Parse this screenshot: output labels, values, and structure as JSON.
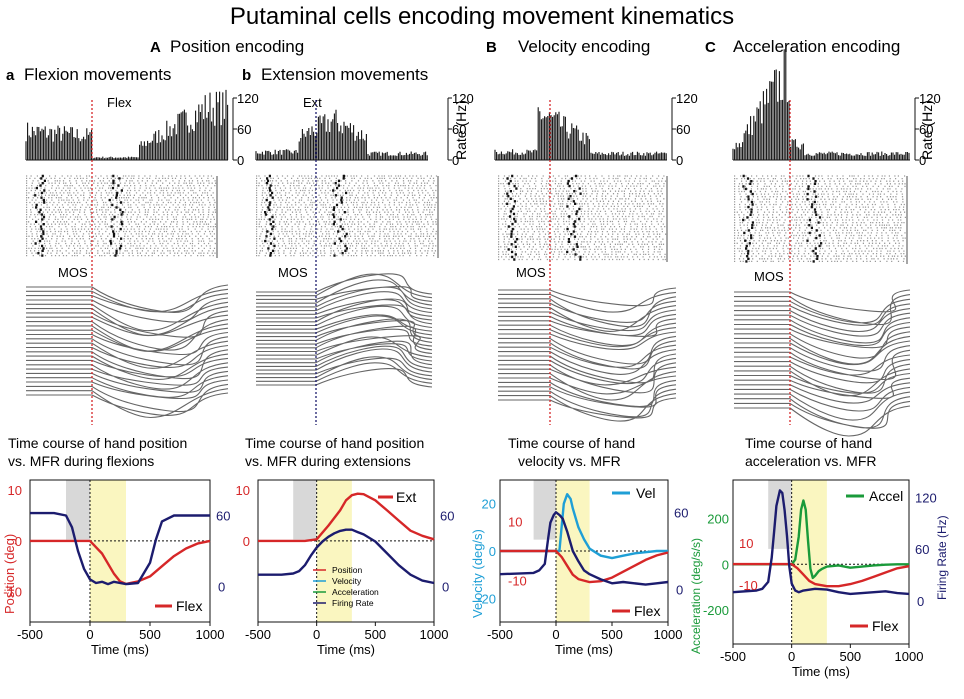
{
  "figure_title": "Putaminal cells encoding movement kinematics",
  "colors": {
    "position": "#d62728",
    "velocity": "#1f9fd6",
    "acceleration": "#1a9a3a",
    "firing_rate": "#1c1c6e",
    "pre_shade": "#d8d8d8",
    "move_shade": "#faf6c0"
  },
  "sections": {
    "A": {
      "letter": "A",
      "title": "Position encoding"
    },
    "B": {
      "letter": "B",
      "title": "Velocity encoding"
    },
    "C": {
      "letter": "C",
      "title": "Acceleration encoding"
    }
  },
  "panels": {
    "a": {
      "letter": "a",
      "title": "Flexion movements",
      "event": "Flex",
      "mos": "MOS",
      "caption_line1": "Time course of hand position",
      "caption_line2": "vs. MFR during flexions"
    },
    "b": {
      "letter": "b",
      "title": "Extension movements",
      "event": "Ext",
      "mos": "MOS",
      "caption_line1": "Time course of hand position",
      "caption_line2": "vs. MFR during extensions"
    },
    "B": {
      "mos": "MOS",
      "caption_line1": "Time course of  hand",
      "caption_line2": "velocity vs. MFR"
    },
    "C": {
      "mos": "MOS",
      "caption_line1": "Time course of hand",
      "caption_line2": "acceleration vs. MFR"
    }
  },
  "histogram_axis": {
    "ticks": [
      "120",
      "60",
      "0"
    ],
    "label": "Rate (Hz)"
  },
  "chart_data": [
    {
      "type": "line",
      "panel": "A-a",
      "title": "Time course of hand position vs. MFR during flexions",
      "xlabel": "Time (ms)",
      "xlim": [
        -500,
        1000
      ],
      "xticks": [
        "-500",
        "0",
        "500",
        "1000"
      ],
      "ylabel_left": "Position (deg)",
      "yticks_left": [
        "10",
        "0",
        "-10"
      ],
      "yticks_right": [
        "60",
        "0"
      ],
      "legend": [
        "Flex"
      ],
      "series": [
        {
          "name": "Position",
          "axis": "left",
          "x": [
            -500,
            -200,
            0,
            100,
            200,
            250,
            300,
            400,
            500,
            600,
            700,
            800,
            900,
            1000
          ],
          "values": [
            0,
            0,
            0,
            -2.5,
            -6.5,
            -8,
            -8.5,
            -8,
            -7,
            -5,
            -3,
            -1.5,
            -0.5,
            0
          ]
        },
        {
          "name": "Firing Rate",
          "axis": "right",
          "x": [
            -500,
            -300,
            -200,
            -150,
            -100,
            -50,
            0,
            50,
            100,
            150,
            200,
            250,
            300,
            400,
            500,
            550,
            600,
            700,
            800,
            900,
            1000
          ],
          "values": [
            62,
            62,
            60,
            50,
            30,
            15,
            6,
            3,
            4,
            2,
            4,
            3,
            2,
            3,
            20,
            40,
            55,
            60,
            60,
            60,
            60
          ]
        }
      ]
    },
    {
      "type": "line",
      "panel": "A-b",
      "title": "Time course of hand position vs. MFR during extensions",
      "xlabel": "Time (ms)",
      "xlim": [
        -500,
        1000
      ],
      "xticks": [
        "-500",
        "0",
        "500",
        "1000"
      ],
      "yticks_left": [
        "10",
        "0"
      ],
      "yticks_right": [
        "60",
        "0"
      ],
      "legend": [
        "Ext",
        "Position",
        "Velocity",
        "Acceleration",
        "Firing Rate"
      ],
      "series": [
        {
          "name": "Position",
          "axis": "left",
          "x": [
            -500,
            -100,
            0,
            100,
            200,
            250,
            300,
            350,
            400,
            500,
            600,
            700,
            800,
            900,
            1000
          ],
          "values": [
            0,
            0,
            0.3,
            3,
            6,
            8,
            9,
            9.3,
            9.2,
            8,
            6,
            4,
            2,
            1,
            0.3
          ]
        },
        {
          "name": "Firing Rate",
          "axis": "right",
          "x": [
            -500,
            -300,
            -200,
            -150,
            -100,
            -50,
            0,
            50,
            100,
            150,
            200,
            250,
            300,
            350,
            400,
            500,
            600,
            700,
            800,
            900,
            1000
          ],
          "values": [
            10,
            10,
            11,
            13,
            18,
            26,
            33,
            38,
            42,
            45,
            47,
            48,
            48,
            46,
            44,
            38,
            28,
            18,
            10,
            5,
            3
          ]
        }
      ]
    },
    {
      "type": "line",
      "panel": "B",
      "title": "Time course of  hand velocity vs. MFR",
      "xlabel": "Time (ms)",
      "xlim": [
        -500,
        1000
      ],
      "xticks": [
        "-500",
        "0",
        "500",
        "1000"
      ],
      "ylabel_left": "Velocity (deg/s)",
      "yticks_left": [
        "20",
        "0",
        "-20"
      ],
      "yticks_right": [
        "60",
        "0"
      ],
      "position_ticks": [
        "10",
        "-10"
      ],
      "legend": [
        "Vel",
        "Flex"
      ],
      "series": [
        {
          "name": "Velocity",
          "axis": "left",
          "x": [
            -500,
            0,
            30,
            50,
            70,
            100,
            130,
            150,
            200,
            250,
            300,
            400,
            500,
            600,
            700,
            800,
            900,
            1000
          ],
          "values": [
            0,
            0,
            0,
            10,
            20,
            24,
            22,
            18,
            10,
            5,
            1,
            -2,
            -3,
            -2,
            -1,
            -0.5,
            0,
            0
          ]
        },
        {
          "name": "Position",
          "axis": "left",
          "x": [
            -500,
            0,
            50,
            100,
            150,
            200,
            300,
            400,
            500,
            600,
            700,
            800,
            900,
            1000
          ],
          "values": [
            0,
            0,
            -2,
            -5,
            -8,
            -9.5,
            -10.5,
            -10.2,
            -9,
            -7,
            -5,
            -3,
            -1.5,
            -0.5
          ]
        },
        {
          "name": "Firing Rate",
          "axis": "right",
          "x": [
            -500,
            -200,
            -150,
            -100,
            -70,
            -50,
            -20,
            0,
            30,
            60,
            100,
            150,
            200,
            250,
            300,
            400,
            500,
            600,
            700,
            800,
            900,
            1000
          ],
          "values": [
            12,
            13,
            15,
            20,
            40,
            52,
            58,
            60,
            58,
            55,
            45,
            30,
            22,
            15,
            12,
            8,
            5,
            6,
            5,
            4,
            5,
            6
          ]
        }
      ]
    },
    {
      "type": "line",
      "panel": "C",
      "title": "Time course of hand acceleration vs. MFR",
      "xlabel": "Time (ms)",
      "xlim": [
        -500,
        1000
      ],
      "xticks": [
        "-500",
        "0",
        "500",
        "1000"
      ],
      "ylabel_left": "Acceleration (deg/s/s)",
      "yticks_left": [
        "200",
        "0",
        "-200"
      ],
      "ylabel_right": "Firing Rate (Hz)",
      "yticks_right": [
        "120",
        "60",
        "0"
      ],
      "position_ticks": [
        "10",
        "-10"
      ],
      "legend": [
        "Accel",
        "Flex"
      ],
      "series": [
        {
          "name": "Acceleration",
          "axis": "left",
          "x": [
            -500,
            0,
            30,
            60,
            80,
            100,
            120,
            140,
            160,
            180,
            200,
            230,
            260,
            300,
            400,
            500,
            600,
            700,
            800,
            900,
            1000
          ],
          "values": [
            0,
            0,
            20,
            120,
            240,
            280,
            240,
            100,
            -20,
            -60,
            -50,
            -30,
            -20,
            -10,
            -5,
            -15,
            -10,
            -5,
            -2,
            0,
            0
          ]
        },
        {
          "name": "Position",
          "axis": "left",
          "x": [
            -500,
            0,
            50,
            100,
            150,
            200,
            300,
            400,
            500,
            600,
            700,
            800,
            900,
            1000
          ],
          "values": [
            0,
            0,
            -2,
            -5,
            -8,
            -9.5,
            -10.5,
            -10.5,
            -9.5,
            -8,
            -6,
            -4,
            -2,
            -1
          ]
        },
        {
          "name": "Firing Rate",
          "axis": "right",
          "x": [
            -500,
            -300,
            -250,
            -200,
            -170,
            -150,
            -130,
            -100,
            -80,
            -60,
            -40,
            -20,
            0,
            30,
            60,
            100,
            200,
            300,
            400,
            500,
            600,
            700,
            800,
            900,
            1000
          ],
          "values": [
            10,
            12,
            14,
            22,
            50,
            80,
            110,
            128,
            125,
            105,
            75,
            40,
            20,
            12,
            10,
            12,
            14,
            13,
            10,
            8,
            9,
            10,
            11,
            9,
            8
          ]
        }
      ]
    }
  ]
}
